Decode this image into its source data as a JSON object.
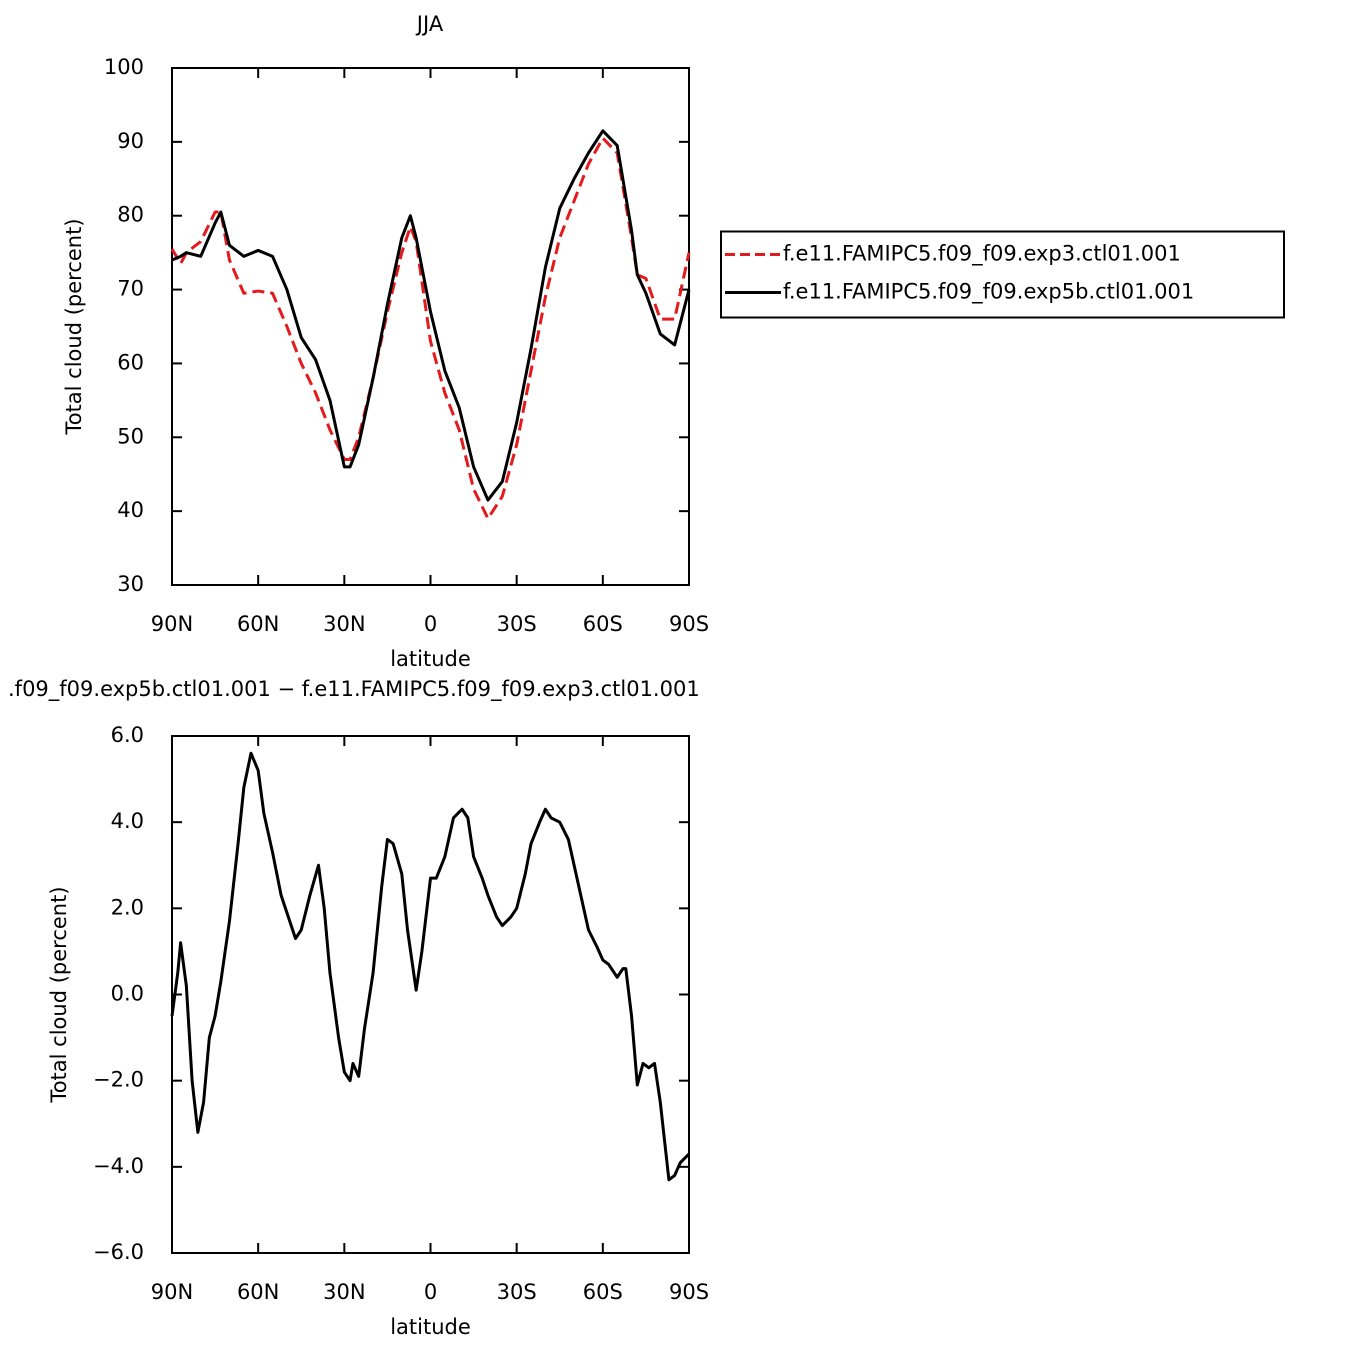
{
  "chart_data": [
    {
      "type": "line",
      "title": "JJA",
      "xlabel": "latitude",
      "ylabel": "Total cloud (percent)",
      "x": [
        90,
        87,
        85,
        80,
        75,
        73,
        70,
        65,
        60,
        55,
        50,
        45,
        40,
        35,
        30,
        28,
        25,
        20,
        15,
        10,
        7,
        5,
        0,
        -5,
        -10,
        -15,
        -20,
        -25,
        -30,
        -35,
        -40,
        -45,
        -50,
        -55,
        -60,
        -65,
        -70,
        -72,
        -75,
        -80,
        -85,
        -90
      ],
      "series": [
        {
          "name": "f.e11.FAMIPC5.f09_f09.exp3.ctl01.001",
          "color": "#e41a1c",
          "dashed": true,
          "values": [
            75.5,
            73.5,
            75,
            76.5,
            80.5,
            80.5,
            74,
            69.5,
            69.8,
            69.5,
            65,
            60,
            56,
            51,
            47,
            47,
            50,
            58,
            67,
            75,
            78.5,
            76.5,
            63,
            56,
            51,
            43,
            39,
            42,
            49,
            59,
            69,
            77,
            82,
            87,
            90.5,
            88.5,
            77,
            72,
            71.5,
            66,
            66,
            75
          ]
        },
        {
          "name": "f.e11.FAMIPC5.f09_f09.exp5b.ctl01.001",
          "color": "#000000",
          "dashed": false,
          "values": [
            74,
            74.5,
            75,
            74.5,
            79,
            80.5,
            76,
            74.5,
            75.3,
            74.5,
            70,
            63.5,
            60.5,
            55,
            46,
            46,
            49,
            58,
            68,
            77,
            80,
            77,
            67,
            59,
            54,
            46,
            41.5,
            44,
            52,
            62,
            73,
            81,
            85,
            88.5,
            91.5,
            89.5,
            78,
            72,
            69.5,
            64,
            62.5,
            70
          ]
        }
      ],
      "xlim": [
        90,
        -90
      ],
      "xticks": [
        {
          "value": 90,
          "label": "90N"
        },
        {
          "value": 60,
          "label": "60N"
        },
        {
          "value": 30,
          "label": "30N"
        },
        0,
        {
          "value": -30,
          "label": "30S"
        },
        {
          "value": -60,
          "label": "60S"
        },
        {
          "value": -90,
          "label": "90S"
        }
      ],
      "ylim": [
        30,
        100
      ],
      "yticks": [
        30,
        40,
        50,
        60,
        70,
        80,
        90,
        100
      ],
      "grid": false,
      "legend": "right"
    },
    {
      "type": "line",
      "title": ".f09_f09.exp5b.ctl01.001  −  f.e11.FAMIPC5.f09_f09.exp3.ctl01.001",
      "xlabel": "latitude",
      "ylabel": "Total cloud (percent)",
      "x": [
        90,
        88,
        87,
        85,
        83,
        81,
        79,
        77,
        75,
        73,
        70,
        67,
        65,
        62.5,
        60,
        58,
        55,
        52,
        50,
        47,
        45,
        42,
        39,
        37,
        35,
        32,
        30,
        28,
        27,
        25,
        23,
        20,
        17,
        15,
        13,
        10,
        8,
        5,
        3,
        0,
        -2,
        -5,
        -8,
        -11,
        -13,
        -15,
        -18,
        -20,
        -23,
        -25,
        -28,
        -30,
        -33,
        -35,
        -38,
        -40,
        -42,
        -45,
        -48,
        -50,
        -55,
        -58,
        -60,
        -62,
        -65,
        -67,
        -68,
        -70,
        -72,
        -74,
        -76,
        -78,
        -80,
        -83,
        -85,
        -87,
        -90
      ],
      "series": [
        {
          "color": "#000000",
          "dashed": false,
          "values": [
            -0.5,
            0.5,
            1.2,
            0.2,
            -2,
            -3.2,
            -2.5,
            -1,
            -0.5,
            0.3,
            1.7,
            3.5,
            4.8,
            5.6,
            5.2,
            4.2,
            3.3,
            2.3,
            1.9,
            1.3,
            1.5,
            2.3,
            3.0,
            2.0,
            0.5,
            -1.0,
            -1.8,
            -2.0,
            -1.6,
            -1.9,
            -0.8,
            0.5,
            2.5,
            3.6,
            3.5,
            2.8,
            1.5,
            0.1,
            1.0,
            2.7,
            2.7,
            3.2,
            4.1,
            4.3,
            4.1,
            3.2,
            2.7,
            2.3,
            1.8,
            1.6,
            1.8,
            2.0,
            2.8,
            3.5,
            4.0,
            4.3,
            4.1,
            4.0,
            3.6,
            3.0,
            1.5,
            1.1,
            0.8,
            0.7,
            0.4,
            0.6,
            0.6,
            -0.5,
            -2.1,
            -1.6,
            -1.7,
            -1.6,
            -2.5,
            -4.3,
            -4.2,
            -3.9,
            -3.7
          ]
        }
      ],
      "xlim": [
        90,
        -90
      ],
      "xticks": [
        {
          "value": 90,
          "label": "90N"
        },
        {
          "value": 60,
          "label": "60N"
        },
        {
          "value": 30,
          "label": "30N"
        },
        0,
        {
          "value": -30,
          "label": "30S"
        },
        {
          "value": -60,
          "label": "60S"
        },
        {
          "value": -90,
          "label": "90S"
        }
      ],
      "ylim": [
        -6,
        6
      ],
      "yticks": [
        {
          "value": -6,
          "label": "−6.0"
        },
        {
          "value": -4,
          "label": "−4.0"
        },
        {
          "value": -2,
          "label": "−2.0"
        },
        {
          "value": 0,
          "label": "0.0"
        },
        {
          "value": 2,
          "label": "2.0"
        },
        {
          "value": 4,
          "label": "4.0"
        },
        {
          "value": 6,
          "label": "6.0"
        }
      ],
      "grid": false
    }
  ]
}
